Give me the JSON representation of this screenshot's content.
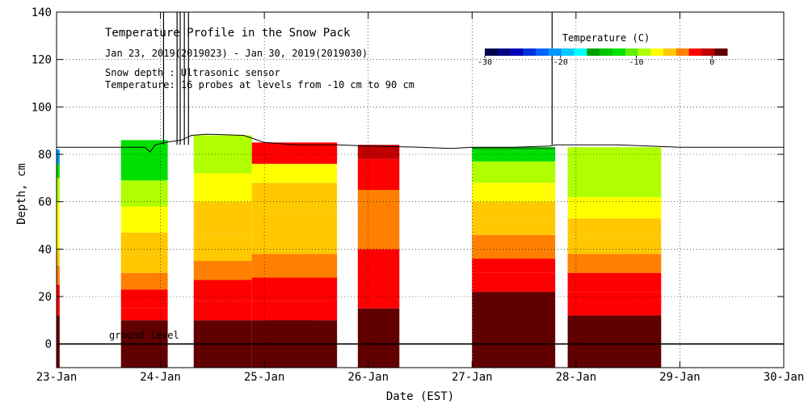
{
  "chart_data": {
    "type": "heatmap",
    "title": "Temperature Profile in the Snow Pack",
    "subtitle": "Jan 23, 2019(2019023) - Jan 30, 2019(2019030)",
    "notes": [
      "Snow depth : Ultrasonic sensor",
      "Temperature: 16 probes at levels from -10 cm to 90 cm"
    ],
    "xlabel": "Date (EST)",
    "ylabel": "Depth, cm",
    "xlim": [
      0,
      7
    ],
    "ylim": [
      -10,
      140
    ],
    "x_ticks": [
      {
        "v": 0,
        "label": "23-Jan"
      },
      {
        "v": 1,
        "label": "24-Jan"
      },
      {
        "v": 2,
        "label": "25-Jan"
      },
      {
        "v": 3,
        "label": "26-Jan"
      },
      {
        "v": 4,
        "label": "27-Jan"
      },
      {
        "v": 5,
        "label": "28-Jan"
      },
      {
        "v": 6,
        "label": "29-Jan"
      },
      {
        "v": 7,
        "label": "30-Jan"
      }
    ],
    "y_ticks": [
      {
        "v": 0,
        "label": "0"
      },
      {
        "v": 20,
        "label": "20"
      },
      {
        "v": 40,
        "label": "40"
      },
      {
        "v": 60,
        "label": "60"
      },
      {
        "v": 80,
        "label": "80"
      },
      {
        "v": 100,
        "label": "100"
      },
      {
        "v": 120,
        "label": "120"
      },
      {
        "v": 140,
        "label": "140"
      }
    ],
    "ground_label": "ground level",
    "colorbar": {
      "title": "Temperature (C)",
      "ticks": [
        {
          "v": -30,
          "label": "-30"
        },
        {
          "v": -20,
          "label": "-20"
        },
        {
          "v": -10,
          "label": "-10"
        },
        {
          "v": 0,
          "label": "0"
        }
      ],
      "range": [
        -30,
        2
      ],
      "colors": [
        "#000050",
        "#000080",
        "#0000b4",
        "#0032dc",
        "#0064ff",
        "#0096ff",
        "#00c8ff",
        "#00ffff",
        "#00a000",
        "#00c800",
        "#00e000",
        "#60f000",
        "#b0ff00",
        "#ffff00",
        "#ffc800",
        "#ff8000",
        "#ff0000",
        "#c00000",
        "#600000"
      ]
    },
    "snow_depth": [
      [
        0,
        83
      ],
      [
        0.5,
        83
      ],
      [
        0.85,
        83
      ],
      [
        0.9,
        81
      ],
      [
        0.95,
        84
      ],
      [
        1.05,
        85
      ],
      [
        1.2,
        86
      ],
      [
        1.3,
        88
      ],
      [
        1.45,
        88.5
      ],
      [
        1.8,
        88
      ],
      [
        1.9,
        86.5
      ],
      [
        2.0,
        85
      ],
      [
        2.3,
        84
      ],
      [
        2.7,
        84
      ],
      [
        3.0,
        83.5
      ],
      [
        3.5,
        83
      ],
      [
        3.8,
        82.5
      ],
      [
        4.0,
        83
      ],
      [
        4.4,
        83
      ],
      [
        4.75,
        83.5
      ],
      [
        4.8,
        84
      ],
      [
        5.0,
        84
      ],
      [
        5.4,
        84
      ],
      [
        5.7,
        83.5
      ],
      [
        6.0,
        83
      ],
      [
        6.3,
        83
      ],
      [
        6.6,
        83
      ],
      [
        7.0,
        83
      ]
    ],
    "snow_depth_spikes": [
      [
        1.03,
        140
      ],
      [
        1.16,
        140
      ],
      [
        1.19,
        140
      ],
      [
        1.23,
        140
      ],
      [
        1.27,
        140
      ],
      [
        4.77,
        140
      ]
    ],
    "segments": [
      {
        "x": [
          0,
          0.03
        ],
        "top": 82,
        "bands": [
          [
            -10,
            12,
            2
          ],
          [
            12,
            25,
            -2
          ],
          [
            25,
            33,
            -4
          ],
          [
            33,
            40,
            -5
          ],
          [
            40,
            60,
            -7
          ],
          [
            60,
            70,
            -9
          ],
          [
            70,
            76,
            -12
          ],
          [
            76,
            82,
            -20
          ]
        ]
      },
      {
        "x": [
          0.62,
          1.07
        ],
        "top": 86,
        "bands": [
          [
            -10,
            10,
            2
          ],
          [
            10,
            15,
            -2
          ],
          [
            15,
            23,
            -3
          ],
          [
            23,
            30,
            -4
          ],
          [
            30,
            38,
            -5
          ],
          [
            38,
            47,
            -6
          ],
          [
            47,
            58,
            -7
          ],
          [
            58,
            69,
            -9
          ],
          [
            69,
            86,
            -12
          ]
        ]
      },
      {
        "x": [
          1.32,
          1.88
        ],
        "top": 88,
        "bands": [
          [
            -10,
            10,
            2
          ],
          [
            10,
            18,
            -2
          ],
          [
            18,
            27,
            -3
          ],
          [
            27,
            35,
            -4
          ],
          [
            35,
            47,
            -5
          ],
          [
            47,
            60,
            -6
          ],
          [
            60,
            72,
            -7
          ],
          [
            72,
            88,
            -9
          ]
        ]
      },
      {
        "x": [
          1.88,
          2.7
        ],
        "top": 85,
        "bands": [
          [
            -10,
            10,
            2
          ],
          [
            10,
            18,
            -2
          ],
          [
            18,
            28,
            -3
          ],
          [
            28,
            38,
            -4
          ],
          [
            38,
            55,
            -5
          ],
          [
            55,
            68,
            -6
          ],
          [
            68,
            76,
            -7
          ],
          [
            76,
            85,
            -3
          ]
        ]
      },
      {
        "x": [
          1.98,
          2.5
        ],
        "top": 10,
        "bands": [
          [
            0,
            10,
            5
          ]
        ]
      },
      {
        "x": [
          2.9,
          3.3
        ],
        "top": 84,
        "bands": [
          [
            -10,
            15,
            2
          ],
          [
            15,
            28,
            -2
          ],
          [
            28,
            40,
            -3
          ],
          [
            40,
            65,
            -4
          ],
          [
            65,
            78,
            -3
          ],
          [
            78,
            84,
            -1
          ]
        ]
      },
      {
        "x": [
          4.0,
          4.8
        ],
        "top": 83,
        "bands": [
          [
            -10,
            22,
            2
          ],
          [
            22,
            30,
            -2
          ],
          [
            30,
            36,
            -3
          ],
          [
            36,
            46,
            -4
          ],
          [
            46,
            53,
            -5
          ],
          [
            53,
            60,
            -6
          ],
          [
            60,
            68,
            -7
          ],
          [
            68,
            77,
            -9
          ],
          [
            77,
            82,
            -12
          ],
          [
            82,
            83,
            -16
          ]
        ]
      },
      {
        "x": [
          4.92,
          5.82
        ],
        "top": 83,
        "bands": [
          [
            -10,
            12,
            2
          ],
          [
            12,
            22,
            -2
          ],
          [
            22,
            30,
            -3
          ],
          [
            30,
            38,
            -4
          ],
          [
            38,
            45,
            -5
          ],
          [
            45,
            53,
            -6
          ],
          [
            53,
            62,
            -7
          ],
          [
            62,
            73,
            -9
          ],
          [
            73,
            83,
            -9
          ]
        ]
      }
    ]
  }
}
